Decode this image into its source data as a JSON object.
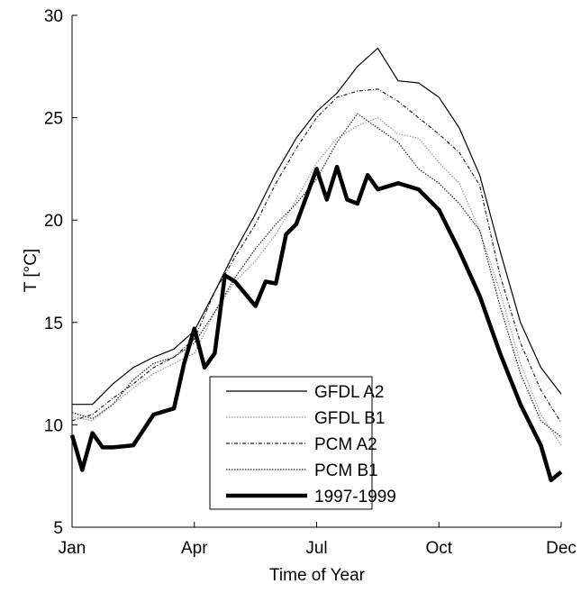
{
  "chart_data": {
    "type": "line",
    "xlabel": "Time of Year",
    "ylabel": "T [°C]",
    "xlim": [
      0,
      12
    ],
    "xticks": [
      {
        "value": 0,
        "label": "Jan"
      },
      {
        "value": 3,
        "label": "Apr"
      },
      {
        "value": 6,
        "label": "Jul"
      },
      {
        "value": 9,
        "label": "Oct"
      },
      {
        "value": 12,
        "label": "Dec"
      }
    ],
    "ylim": [
      5,
      30
    ],
    "yticks": [
      5,
      10,
      15,
      20,
      25,
      30
    ],
    "legend": "lower center",
    "series": [
      {
        "name": "GFDL A2",
        "color": "#000000",
        "style": "solid",
        "x": [
          0,
          0.5,
          1,
          1.5,
          2,
          2.5,
          3,
          3.5,
          4,
          4.5,
          5,
          5.5,
          6,
          6.5,
          7,
          7.5,
          8,
          8.5,
          9,
          9.5,
          10,
          10.5,
          11,
          11.5,
          12
        ],
        "values": [
          11.0,
          11.0,
          12.0,
          12.8,
          13.3,
          13.7,
          14.6,
          16.5,
          18.5,
          20.3,
          22.3,
          24.0,
          25.3,
          26.2,
          27.5,
          28.4,
          26.8,
          26.7,
          26.0,
          24.5,
          22.2,
          18.5,
          15.0,
          12.8,
          11.5
        ]
      },
      {
        "name": "GFDL B1",
        "color": "#999999",
        "style": "dotted",
        "x": [
          0,
          0.5,
          1,
          1.5,
          2,
          2.5,
          3,
          3.5,
          4,
          4.5,
          5,
          5.5,
          6,
          6.5,
          7,
          7.5,
          8,
          8.5,
          9,
          9.5,
          10,
          10.5,
          11,
          11.5,
          12
        ],
        "values": [
          10.4,
          10.2,
          11.0,
          11.8,
          12.5,
          13.0,
          13.5,
          15.5,
          17.0,
          18.0,
          19.3,
          21.0,
          22.8,
          24.0,
          24.6,
          25.0,
          24.2,
          24.0,
          22.8,
          21.8,
          19.5,
          16.5,
          13.0,
          10.5,
          9.0
        ]
      },
      {
        "name": "PCM A2",
        "color": "#222222",
        "style": "dashdot",
        "x": [
          0,
          0.5,
          1,
          1.5,
          2,
          2.5,
          3,
          3.5,
          4,
          4.5,
          5,
          5.5,
          6,
          6.5,
          7,
          7.5,
          8,
          8.5,
          9,
          9.5,
          10,
          10.5,
          11,
          11.5,
          12
        ],
        "values": [
          10.2,
          10.5,
          11.3,
          12.0,
          12.8,
          13.3,
          14.2,
          16.5,
          18.2,
          19.8,
          21.8,
          23.5,
          25.0,
          26.0,
          26.3,
          26.4,
          25.8,
          25.0,
          24.2,
          23.3,
          21.7,
          17.3,
          14.0,
          11.7,
          10.1
        ]
      },
      {
        "name": "PCM B1",
        "color": "#222222",
        "style": "dotted",
        "x": [
          0,
          0.5,
          1,
          1.5,
          2,
          2.5,
          3,
          3.5,
          4,
          4.5,
          5,
          5.5,
          6,
          6.5,
          7,
          7.5,
          8,
          8.5,
          9,
          9.5,
          10,
          10.5,
          11,
          11.5,
          12
        ],
        "values": [
          10.6,
          10.3,
          11.0,
          12.2,
          13.0,
          13.3,
          14.0,
          15.5,
          17.2,
          18.6,
          19.8,
          20.8,
          22.0,
          23.8,
          25.2,
          24.5,
          23.8,
          22.5,
          21.8,
          20.8,
          19.5,
          15.8,
          12.5,
          10.2,
          9.4
        ]
      },
      {
        "name": "1997-1999",
        "color": "#000000",
        "style": "thick",
        "x": [
          0,
          0.25,
          0.5,
          0.75,
          1,
          1.5,
          2,
          2.5,
          2.75,
          3,
          3.25,
          3.5,
          3.75,
          4,
          4.5,
          4.75,
          5,
          5.25,
          5.5,
          6,
          6.25,
          6.5,
          6.75,
          7,
          7.25,
          7.5,
          8,
          8.5,
          9,
          9.5,
          10,
          10.5,
          11,
          11.5,
          11.75,
          12
        ],
        "values": [
          9.5,
          7.8,
          9.6,
          8.9,
          8.9,
          9.0,
          10.5,
          10.8,
          13.0,
          14.7,
          12.8,
          13.5,
          17.3,
          17.0,
          15.8,
          17.0,
          16.9,
          19.3,
          19.8,
          22.5,
          21.0,
          22.6,
          21.0,
          20.8,
          22.2,
          21.5,
          21.8,
          21.5,
          20.5,
          18.5,
          16.3,
          13.5,
          11.0,
          9.0,
          7.3,
          7.7
        ]
      }
    ]
  }
}
